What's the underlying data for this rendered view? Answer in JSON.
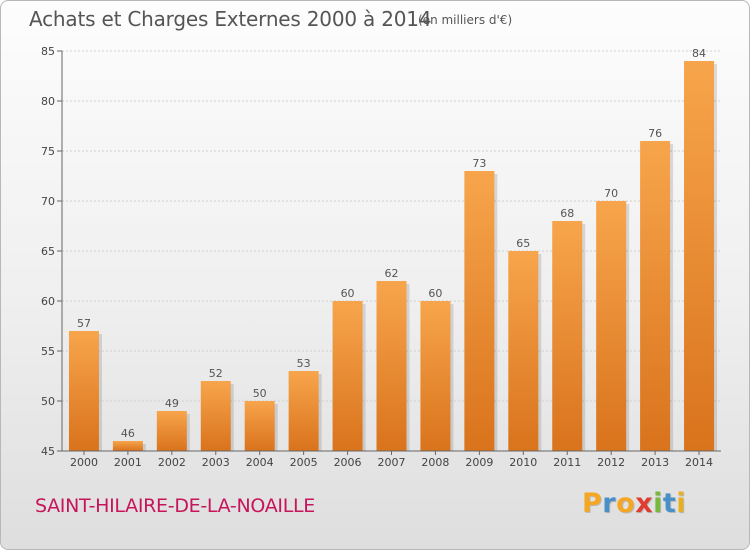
{
  "title": "Achats et Charges Externes 2000 à 2014",
  "unit_note": "(en milliers d'€)",
  "commune": "SAINT-HILAIRE-DE-LA-NOAILLE",
  "logo": {
    "letters": [
      "P",
      "r",
      "o",
      "x",
      "i",
      "t",
      "i"
    ],
    "colors": [
      "#f5a623",
      "#4a90c8",
      "#f5a623",
      "#e03c31",
      "#78b83a",
      "#4a90c8",
      "#e8b020"
    ]
  },
  "colors": {
    "bar_light": "#f7a54c",
    "bar_dark": "#d9731c"
  },
  "chart_data": {
    "type": "bar",
    "title": "Achats et Charges Externes 2000 à 2014",
    "categories": [
      "2000",
      "2001",
      "2002",
      "2003",
      "2004",
      "2005",
      "2006",
      "2007",
      "2008",
      "2009",
      "2010",
      "2011",
      "2012",
      "2013",
      "2014"
    ],
    "values": [
      57,
      46,
      49,
      52,
      50,
      53,
      60,
      62,
      60,
      73,
      65,
      68,
      70,
      76,
      84
    ],
    "ylim": [
      45,
      85
    ],
    "yticks": [
      45,
      50,
      55,
      60,
      65,
      70,
      75,
      80,
      85
    ],
    "grid": true,
    "xlabel": "",
    "ylabel": ""
  }
}
